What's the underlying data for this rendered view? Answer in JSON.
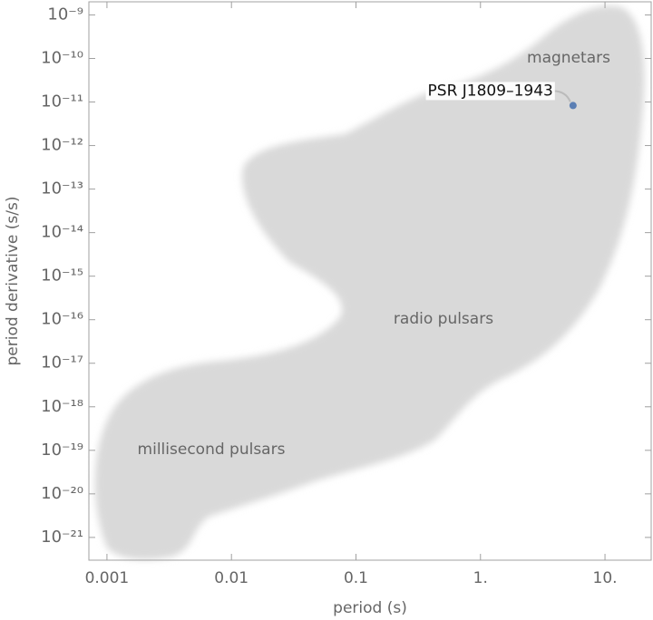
{
  "chart_data": {
    "type": "scatter",
    "x_label": "period (s)",
    "y_label": "period derivative (s/s)",
    "log_x": true,
    "log_y": true,
    "xlim": [
      0.000716,
      23.5
    ],
    "ylim": [
      3e-22,
      2e-09
    ],
    "xticks": [
      0.001,
      0.01,
      0.1,
      {
        "value": 1,
        "label": "1."
      },
      {
        "value": 10,
        "label": "10."
      }
    ],
    "yticks": [
      {
        "value": 1e-09,
        "label": "10⁻⁹"
      },
      {
        "value": 1e-10,
        "label": "10⁻¹⁰"
      },
      {
        "value": 1e-11,
        "label": "10⁻¹¹"
      },
      {
        "value": 1e-12,
        "label": "10⁻¹²"
      },
      {
        "value": 1e-13,
        "label": "10⁻¹³"
      },
      {
        "value": 1e-14,
        "label": "10⁻¹⁴"
      },
      {
        "value": 1e-15,
        "label": "10⁻¹⁵"
      },
      {
        "value": 1e-16,
        "label": "10⁻¹⁶"
      },
      {
        "value": 1e-17,
        "label": "10⁻¹⁷"
      },
      {
        "value": 1e-18,
        "label": "10⁻¹⁸"
      },
      {
        "value": 1e-19,
        "label": "10⁻¹⁹"
      },
      {
        "value": 1e-20,
        "label": "10⁻²⁰"
      },
      {
        "value": 1e-21,
        "label": "10⁻²¹"
      }
    ],
    "annotations": [
      "magnetars",
      "radio pulsars",
      "millisecond pulsars"
    ],
    "series": [
      {
        "name": "PSR J1809–1943",
        "color": "#5b7fb4",
        "x": [
          5.54
        ],
        "values": [
          8.3e-12
        ]
      }
    ]
  }
}
